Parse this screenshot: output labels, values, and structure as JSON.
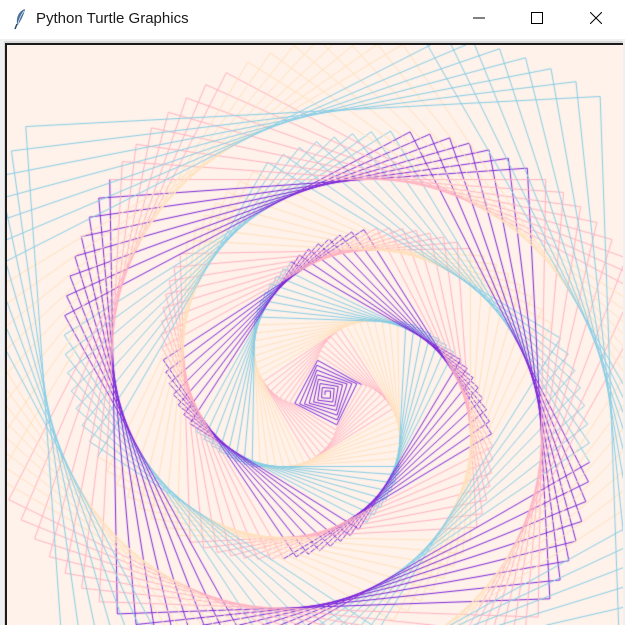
{
  "window": {
    "title": "Python Turtle Graphics",
    "icon": "feather-icon",
    "controls": {
      "minimize_icon": "minimize-icon",
      "maximize_icon": "maximize-icon",
      "close_icon": "close-icon"
    }
  },
  "canvas": {
    "background": "#fff2ea",
    "line_colors": [
      "#7b24d8",
      "#ffb2c1",
      "#ffe1bd",
      "#85cde6"
    ]
  }
}
